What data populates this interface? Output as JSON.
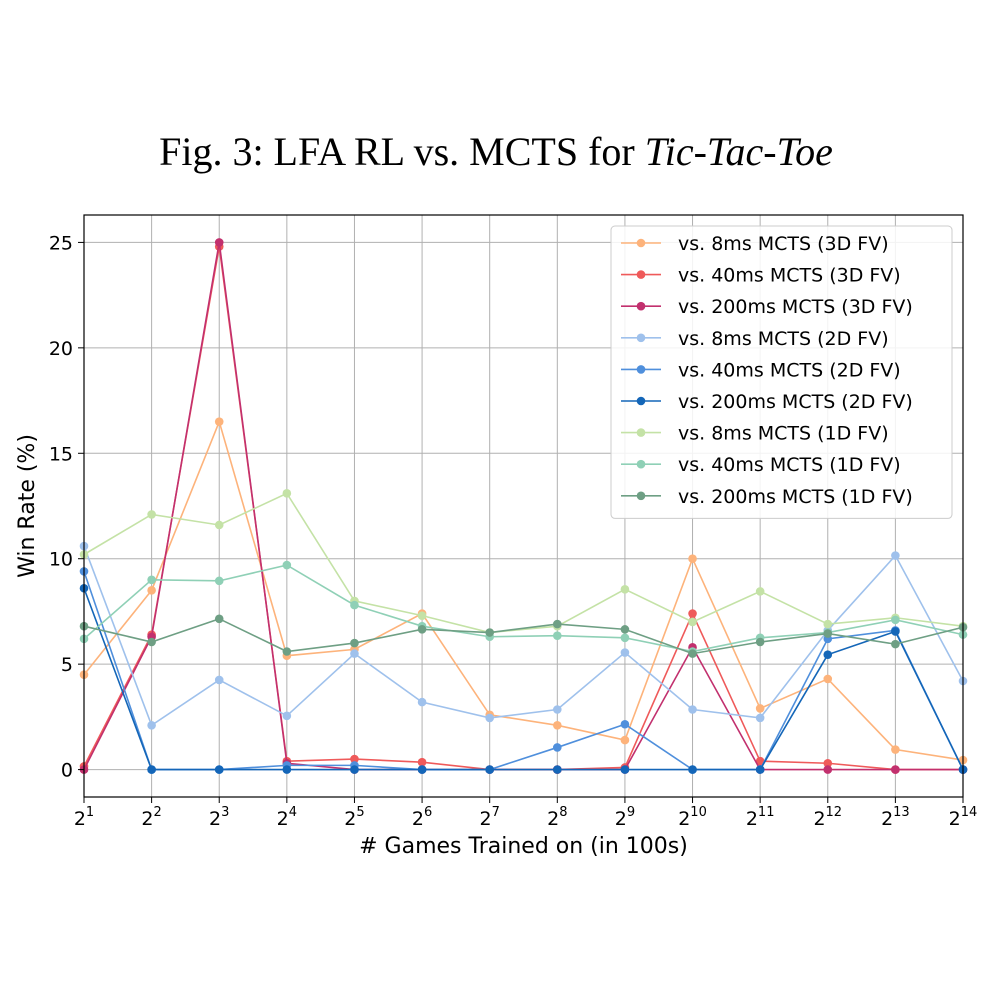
{
  "figure": {
    "title_prefix": "Fig. 3: LFA RL vs. MCTS for ",
    "title_italic": "Tic-Tac-Toe"
  },
  "chart_data": {
    "type": "line",
    "xlabel": "# Games Trained on (in 100s)",
    "ylabel": "Win Rate (%)",
    "x_base": "2",
    "x": [
      1,
      2,
      3,
      4,
      5,
      6,
      7,
      8,
      9,
      10,
      11,
      12,
      13,
      14
    ],
    "x_tick_labels": [
      "1",
      "2",
      "3",
      "4",
      "5",
      "6",
      "7",
      "8",
      "9",
      "10",
      "11",
      "12",
      "13",
      "14"
    ],
    "ylim": [
      -1.3,
      26.3
    ],
    "y_ticks": [
      0,
      5,
      10,
      15,
      20,
      25
    ],
    "y_tick_labels": [
      "0",
      "5",
      "10",
      "15",
      "20",
      "25"
    ],
    "grid": true,
    "legend_position": "top-right",
    "series": [
      {
        "name": "vs. 8ms MCTS (3D FV)",
        "color": "#fdb37b",
        "values": [
          4.5,
          8.5,
          16.5,
          5.4,
          5.7,
          7.4,
          2.6,
          2.1,
          1.4,
          10.0,
          2.9,
          4.3,
          0.95,
          0.45
        ]
      },
      {
        "name": "vs. 40ms MCTS (3D FV)",
        "color": "#ef5a5a",
        "values": [
          0.15,
          6.4,
          24.8,
          0.4,
          0.5,
          0.35,
          0.0,
          0.0,
          0.1,
          7.4,
          0.4,
          0.3,
          0.0,
          0.0
        ]
      },
      {
        "name": "vs. 200ms MCTS (3D FV)",
        "color": "#c2306e",
        "values": [
          0.0,
          6.3,
          25.0,
          0.3,
          0.0,
          0.0,
          0.0,
          0.0,
          0.0,
          5.8,
          0.0,
          0.0,
          0.0,
          0.0
        ]
      },
      {
        "name": "vs. 8ms MCTS (2D FV)",
        "color": "#9fc1ec",
        "values": [
          10.6,
          2.1,
          4.25,
          2.55,
          5.5,
          3.2,
          2.45,
          2.85,
          5.55,
          2.85,
          2.45,
          6.6,
          10.15,
          4.2
        ]
      },
      {
        "name": "vs. 40ms MCTS (2D FV)",
        "color": "#4f8fdc",
        "values": [
          9.4,
          0.0,
          0.0,
          0.2,
          0.2,
          0.0,
          0.0,
          1.05,
          2.15,
          0.0,
          0.0,
          6.2,
          6.6,
          0.0
        ]
      },
      {
        "name": "vs. 200ms MCTS (2D FV)",
        "color": "#1466b8",
        "values": [
          8.6,
          0.0,
          0.0,
          0.0,
          0.0,
          0.0,
          0.0,
          0.0,
          0.0,
          0.0,
          0.0,
          5.45,
          6.55,
          0.0
        ]
      },
      {
        "name": "vs. 8ms MCTS (1D FV)",
        "color": "#c4e2a6",
        "values": [
          10.2,
          12.1,
          11.6,
          13.1,
          8.0,
          7.3,
          6.5,
          6.8,
          8.55,
          7.0,
          8.45,
          6.9,
          7.2,
          6.8
        ]
      },
      {
        "name": "vs. 40ms MCTS (1D FV)",
        "color": "#8fd0b6",
        "values": [
          6.2,
          9.0,
          8.95,
          9.7,
          7.8,
          6.8,
          6.3,
          6.35,
          6.25,
          5.6,
          6.25,
          6.5,
          7.1,
          6.4
        ]
      },
      {
        "name": "vs. 200ms MCTS (1D FV)",
        "color": "#6e9f84",
        "values": [
          6.8,
          6.05,
          7.15,
          5.6,
          6.0,
          6.65,
          6.5,
          6.9,
          6.65,
          5.5,
          6.05,
          6.45,
          5.95,
          6.75
        ]
      }
    ]
  }
}
